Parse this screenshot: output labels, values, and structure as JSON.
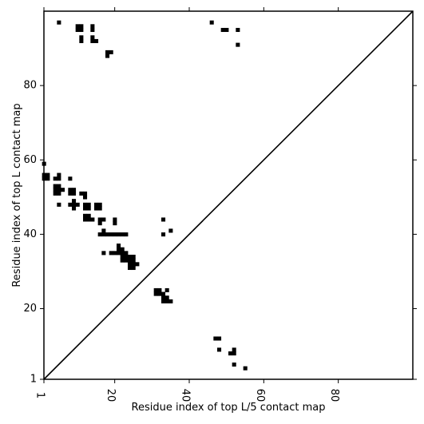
{
  "chart_data": {
    "type": "heatmap",
    "title": "",
    "xlabel": "Residue index of top L/5 contact map",
    "ylabel": "Residue index of top L contact map",
    "xlim": [
      1,
      100
    ],
    "ylim": [
      1,
      100
    ],
    "xticks": [
      1,
      20,
      40,
      60,
      80
    ],
    "yticks": [
      1,
      20,
      40,
      60,
      80
    ],
    "grid": false,
    "diagonal": true,
    "cell_color": "#000000",
    "background": "#ffffff",
    "lower_cells": [
      [
        5,
        97
      ],
      [
        10,
        96
      ],
      [
        10,
        95
      ],
      [
        11,
        95
      ],
      [
        11,
        96
      ],
      [
        11,
        93
      ],
      [
        11,
        92
      ],
      [
        14,
        96
      ],
      [
        14,
        95
      ],
      [
        14,
        93
      ],
      [
        14,
        92
      ],
      [
        15,
        92
      ],
      [
        18,
        89
      ],
      [
        18,
        88
      ],
      [
        19,
        89
      ],
      [
        1,
        59
      ],
      [
        1,
        56
      ],
      [
        1,
        55
      ],
      [
        2,
        56
      ],
      [
        2,
        55
      ],
      [
        4,
        55
      ],
      [
        5,
        56
      ],
      [
        5,
        55
      ],
      [
        8,
        55
      ],
      [
        4,
        53
      ],
      [
        4,
        52
      ],
      [
        4,
        51
      ],
      [
        5,
        53
      ],
      [
        5,
        52
      ],
      [
        5,
        51
      ],
      [
        6,
        52
      ],
      [
        8,
        52
      ],
      [
        8,
        51
      ],
      [
        9,
        52
      ],
      [
        9,
        51
      ],
      [
        11,
        51
      ],
      [
        12,
        51
      ],
      [
        12,
        50
      ],
      [
        5,
        48
      ],
      [
        8,
        48
      ],
      [
        9,
        49
      ],
      [
        9,
        48
      ],
      [
        9,
        47
      ],
      [
        10,
        48
      ],
      [
        12,
        48
      ],
      [
        12,
        47
      ],
      [
        13,
        48
      ],
      [
        13,
        47
      ],
      [
        15,
        48
      ],
      [
        15,
        47
      ],
      [
        16,
        48
      ],
      [
        16,
        47
      ],
      [
        12,
        45
      ],
      [
        13,
        45
      ],
      [
        12,
        44
      ],
      [
        13,
        44
      ],
      [
        14,
        44
      ],
      [
        16,
        44
      ],
      [
        17,
        44
      ],
      [
        16,
        43
      ],
      [
        20,
        44
      ],
      [
        20,
        43
      ],
      [
        17,
        41
      ],
      [
        16,
        40
      ],
      [
        17,
        40
      ],
      [
        18,
        40
      ],
      [
        19,
        40
      ],
      [
        20,
        40
      ],
      [
        21,
        40
      ],
      [
        22,
        40
      ],
      [
        23,
        40
      ],
      [
        21,
        37
      ],
      [
        21,
        36
      ],
      [
        22,
        36
      ],
      [
        17,
        35
      ],
      [
        19,
        35
      ],
      [
        20,
        35
      ],
      [
        21,
        35
      ],
      [
        22,
        35
      ],
      [
        23,
        35
      ],
      [
        22,
        34
      ],
      [
        23,
        34
      ],
      [
        22,
        33
      ],
      [
        23,
        33
      ],
      [
        24,
        33
      ],
      [
        25,
        33
      ],
      [
        24,
        34
      ],
      [
        25,
        34
      ],
      [
        24,
        32
      ],
      [
        25,
        32
      ],
      [
        26,
        32
      ],
      [
        24,
        31
      ],
      [
        25,
        31
      ],
      [
        33,
        44
      ],
      [
        33,
        40
      ],
      [
        35,
        41
      ],
      [
        31,
        25
      ],
      [
        32,
        25
      ],
      [
        31,
        24
      ],
      [
        32,
        24
      ],
      [
        33,
        24
      ],
      [
        34,
        25
      ],
      [
        33,
        23
      ],
      [
        34,
        23
      ],
      [
        33,
        22
      ],
      [
        34,
        22
      ],
      [
        35,
        22
      ]
    ],
    "upper_cells": [
      [
        46,
        97
      ],
      [
        49,
        95
      ],
      [
        50,
        95
      ],
      [
        53,
        95
      ],
      [
        53,
        91
      ],
      [
        47,
        12
      ],
      [
        48,
        12
      ],
      [
        48,
        9
      ],
      [
        51,
        8
      ],
      [
        52,
        8
      ],
      [
        52,
        9
      ],
      [
        52,
        5
      ],
      [
        55,
        4
      ]
    ]
  }
}
